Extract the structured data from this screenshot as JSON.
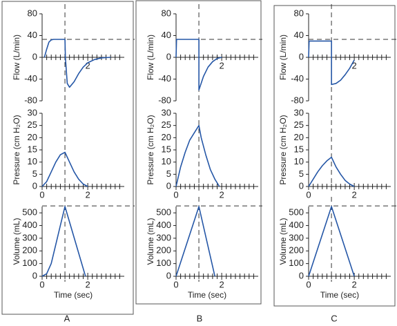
{
  "panel_labels": [
    "A",
    "B",
    "C"
  ],
  "minor_xticks": [
    0.2,
    0.4,
    0.6,
    0.8,
    1.0,
    1.2,
    1.4,
    1.6,
    1.8,
    2.2,
    2.4,
    2.6,
    2.8,
    3.0,
    3.2,
    3.4
  ],
  "chart_data": [
    {
      "type": "line",
      "ylabel": "Flow (L/min)",
      "color": "#2456a6",
      "xlim": [
        0,
        3.6
      ],
      "ylim": [
        -80,
        80
      ],
      "yticks": [
        -80,
        -40,
        0,
        40,
        80
      ],
      "xticks": [
        2
      ],
      "ref_x": 1,
      "ref_y": 33,
      "x": [
        0.1,
        0.2,
        0.3,
        0.4,
        0.5,
        0.7,
        1.0,
        1.02,
        1.1,
        1.2,
        1.4,
        1.6,
        1.8,
        2.0,
        2.3,
        2.6,
        3.0
      ],
      "values": [
        0,
        15,
        28,
        32,
        33,
        33,
        33,
        0,
        -48,
        -55,
        -45,
        -30,
        -18,
        -10,
        -4,
        -1,
        0
      ]
    },
    {
      "type": "line",
      "ylabel": "Pressure (cm H₂O)",
      "color": "#2456a6",
      "xlim": [
        0,
        3.6
      ],
      "ylim": [
        0,
        30
      ],
      "yticks": [
        0,
        5,
        10,
        15,
        20,
        25,
        30
      ],
      "xticks": [
        0,
        2
      ],
      "ref_x": 1,
      "x": [
        0,
        0.2,
        0.4,
        0.6,
        0.8,
        1.0,
        1.2,
        1.4,
        1.6,
        1.8,
        2.0
      ],
      "values": [
        0,
        2,
        6,
        10,
        13,
        14,
        10,
        6,
        3,
        1,
        0
      ]
    },
    {
      "type": "line",
      "ylabel": "Volume (mL)",
      "xlabel": "Time (sec)",
      "color": "#2456a6",
      "xlim": [
        0,
        3.6
      ],
      "ylim": [
        0,
        550
      ],
      "yticks": [
        0,
        100,
        200,
        300,
        400,
        500
      ],
      "xticks": [
        0,
        2
      ],
      "ref_x": 1,
      "ref_y": 555,
      "x": [
        0,
        0.2,
        0.4,
        0.6,
        0.8,
        1.0,
        1.9
      ],
      "values": [
        0,
        20,
        100,
        250,
        400,
        550,
        0
      ]
    },
    {
      "type": "line",
      "ylabel": "Flow (L/min)",
      "color": "#2456a6",
      "xlim": [
        0,
        3.6
      ],
      "ylim": [
        -80,
        80
      ],
      "yticks": [
        -80,
        -40,
        0,
        40,
        80
      ],
      "xticks": [
        2
      ],
      "ref_x": 1,
      "ref_y": 33,
      "x": [
        0,
        0.02,
        1.0,
        1.0,
        1.2,
        1.4,
        1.6,
        1.8,
        2.0
      ],
      "values": [
        0,
        33,
        33,
        -60,
        -35,
        -18,
        -8,
        -2,
        0
      ]
    },
    {
      "type": "line",
      "ylabel": "Pressure (cm H₂O)",
      "color": "#2456a6",
      "xlim": [
        0,
        3.6
      ],
      "ylim": [
        0,
        30
      ],
      "yticks": [
        0,
        5,
        10,
        15,
        20,
        25,
        30
      ],
      "xticks": [
        0,
        2
      ],
      "ref_x": 1,
      "x": [
        0,
        0.2,
        0.4,
        0.6,
        0.8,
        1.0,
        1.1,
        1.3,
        1.5,
        1.7,
        1.9
      ],
      "values": [
        0,
        8,
        14,
        19,
        22,
        25,
        20,
        13,
        7,
        3,
        0
      ]
    },
    {
      "type": "line",
      "ylabel": "Volume (mL)",
      "xlabel": "Time (sec)",
      "color": "#2456a6",
      "xlim": [
        0,
        3.6
      ],
      "ylim": [
        0,
        550
      ],
      "yticks": [
        0,
        100,
        200,
        300,
        400,
        500
      ],
      "xticks": [
        0,
        2
      ],
      "ref_x": 1,
      "ref_y": 555,
      "x": [
        0,
        1.0,
        1.7
      ],
      "values": [
        0,
        550,
        0
      ]
    },
    {
      "type": "line",
      "ylabel": "Flow (L/min)",
      "color": "#2456a6",
      "xlim": [
        0,
        3.6
      ],
      "ylim": [
        -80,
        80
      ],
      "yticks": [
        -80,
        -40,
        0,
        40,
        80
      ],
      "xticks": [
        2
      ],
      "ref_x": 1,
      "ref_y": 33,
      "x": [
        0,
        0.02,
        1.0,
        1.0,
        1.2,
        1.4,
        1.6,
        1.8,
        2.0
      ],
      "values": [
        0,
        30,
        30,
        -50,
        -48,
        -42,
        -32,
        -20,
        -5
      ]
    },
    {
      "type": "line",
      "ylabel": "Pressure (cm H₂O)",
      "color": "#2456a6",
      "xlim": [
        0,
        3.6
      ],
      "ylim": [
        0,
        30
      ],
      "yticks": [
        0,
        5,
        10,
        15,
        20,
        25,
        30
      ],
      "xticks": [
        0,
        2
      ],
      "ref_x": 1,
      "x": [
        0,
        0.2,
        0.4,
        0.6,
        0.8,
        1.0,
        1.2,
        1.4,
        1.6,
        1.8,
        2.0
      ],
      "values": [
        0,
        3,
        6,
        8.5,
        10.5,
        12,
        8,
        5,
        2.5,
        1,
        0
      ]
    },
    {
      "type": "line",
      "ylabel": "Volume (mL)",
      "xlabel": "Time (sec)",
      "color": "#2456a6",
      "xlim": [
        0,
        3.6
      ],
      "ylim": [
        0,
        550
      ],
      "yticks": [
        0,
        100,
        200,
        300,
        400,
        500
      ],
      "xticks": [
        0,
        2
      ],
      "ref_x": 1,
      "ref_y": 555,
      "x": [
        0,
        1.0,
        2.0
      ],
      "values": [
        0,
        550,
        0
      ]
    }
  ]
}
